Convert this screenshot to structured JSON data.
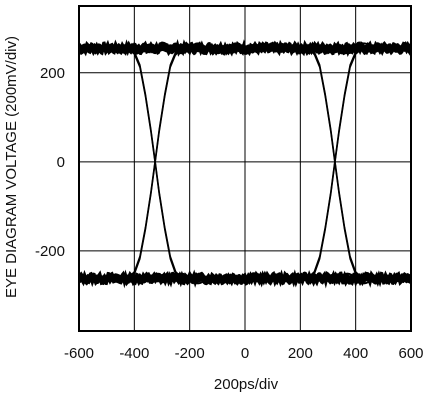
{
  "chart_data": {
    "type": "line",
    "title": "",
    "xlabel": "200ps/div",
    "ylabel": "EYE DIAGRAM VOLTAGE (200mV/div)",
    "xlim": [
      -600,
      600
    ],
    "ylim": [
      -380,
      350
    ],
    "x_ticks": [
      -600,
      -400,
      -200,
      0,
      200,
      400,
      600
    ],
    "x_tick_labels": [
      "-600",
      "-400",
      "-200",
      "0",
      "200",
      "400",
      "600"
    ],
    "y_ticks": [
      -200,
      0,
      200
    ],
    "y_tick_labels": [
      "-200",
      "0",
      "200"
    ],
    "grid": true,
    "legend": "none",
    "colors": {
      "trace": "#000000",
      "grid": "#000000",
      "background": "#ffffff"
    },
    "series": [
      {
        "levels": {
          "high": 255,
          "low": -262,
          "crossing": 0
        },
        "crossing_times": [
          -325,
          325
        ],
        "transition_points": {
          "x": [
            -600,
            -420,
            -400,
            -380,
            -360,
            -340,
            -325,
            -310,
            -290,
            -270,
            -250,
            -230,
            -200,
            0,
            200,
            230,
            250,
            270,
            290,
            310,
            325,
            340,
            360,
            380,
            400,
            420,
            600
          ],
          "y_rising": [
            -262,
            -262,
            -250,
            -215,
            -150,
            -70,
            0,
            70,
            150,
            215,
            245,
            255,
            255,
            255,
            255,
            255,
            245,
            215,
            150,
            70,
            0,
            -70,
            -150,
            -215,
            -250,
            -262,
            -262
          ],
          "y_falling": [
            255,
            255,
            245,
            215,
            150,
            70,
            0,
            -70,
            -150,
            -215,
            -250,
            -262,
            -262,
            -262,
            -262,
            -262,
            -250,
            -215,
            -150,
            -70,
            0,
            70,
            150,
            215,
            245,
            255,
            255
          ]
        }
      }
    ]
  }
}
